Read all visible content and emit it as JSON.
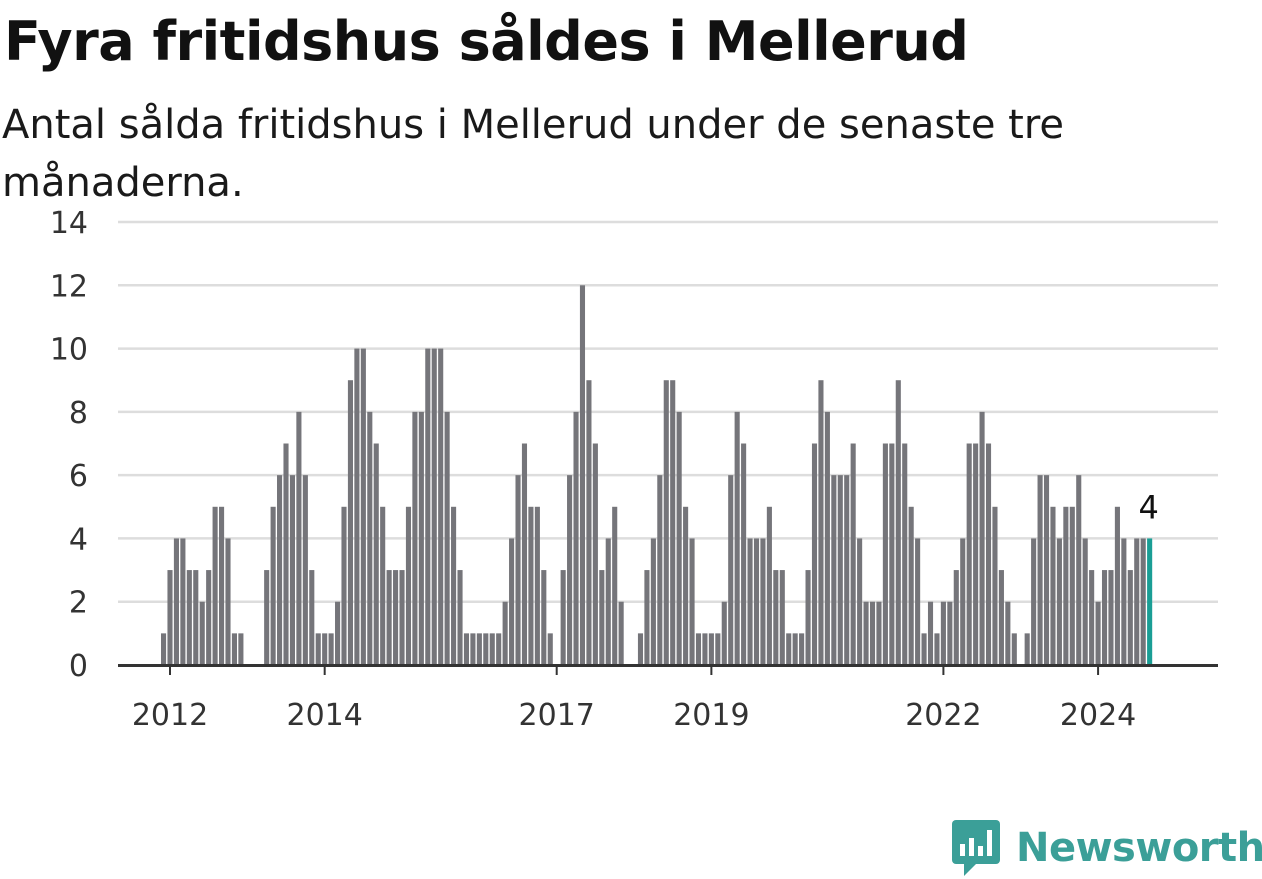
{
  "title": "Fyra fritidshus såldes i Mellerud",
  "subtitle": "Antal sålda fritidshus i Mellerud under de senaste tre månaderna.",
  "brand": {
    "name": "Newsworthy",
    "color": "#3b9f98",
    "icon": "newsworthy-logo-icon"
  },
  "colors": {
    "bar": "#75757a",
    "highlight": "#1a9e95",
    "grid": "#dddddd",
    "axis": "#333333"
  },
  "chart_data": {
    "type": "bar",
    "title": "Fyra fritidshus såldes i Mellerud",
    "subtitle": "Antal sålda fritidshus i Mellerud under de senaste tre månaderna.",
    "xlabel": "",
    "ylabel": "",
    "ylim": [
      0,
      14
    ],
    "y_ticks": [
      0,
      2,
      4,
      6,
      8,
      10,
      12,
      14
    ],
    "x_ticks": [
      "2012",
      "2014",
      "2017",
      "2019",
      "2022",
      "2024"
    ],
    "grid": true,
    "start_month": "2011-10",
    "values": [
      0,
      0,
      1,
      3,
      4,
      4,
      3,
      3,
      2,
      3,
      5,
      5,
      4,
      1,
      1,
      0,
      0,
      0,
      3,
      5,
      6,
      7,
      6,
      8,
      6,
      3,
      1,
      1,
      1,
      2,
      5,
      9,
      10,
      10,
      8,
      7,
      5,
      3,
      3,
      3,
      5,
      8,
      8,
      10,
      10,
      10,
      8,
      5,
      3,
      1,
      1,
      1,
      1,
      1,
      1,
      2,
      4,
      6,
      7,
      5,
      5,
      3,
      1,
      0,
      3,
      6,
      8,
      12,
      9,
      7,
      3,
      4,
      5,
      2,
      0,
      0,
      1,
      3,
      4,
      6,
      9,
      9,
      8,
      5,
      4,
      1,
      1,
      1,
      1,
      2,
      6,
      8,
      7,
      4,
      4,
      4,
      5,
      3,
      3,
      1,
      1,
      1,
      3,
      7,
      9,
      8,
      6,
      6,
      6,
      7,
      4,
      2,
      2,
      2,
      7,
      7,
      9,
      7,
      5,
      4,
      1,
      2,
      1,
      2,
      2,
      3,
      4,
      7,
      7,
      8,
      7,
      5,
      3,
      2,
      1,
      0,
      1,
      4,
      6,
      6,
      5,
      4,
      5,
      5,
      6,
      4,
      3,
      2,
      3,
      3,
      5,
      4,
      3,
      4,
      4,
      4
    ],
    "highlight_last": true,
    "last_value_label": "4"
  }
}
